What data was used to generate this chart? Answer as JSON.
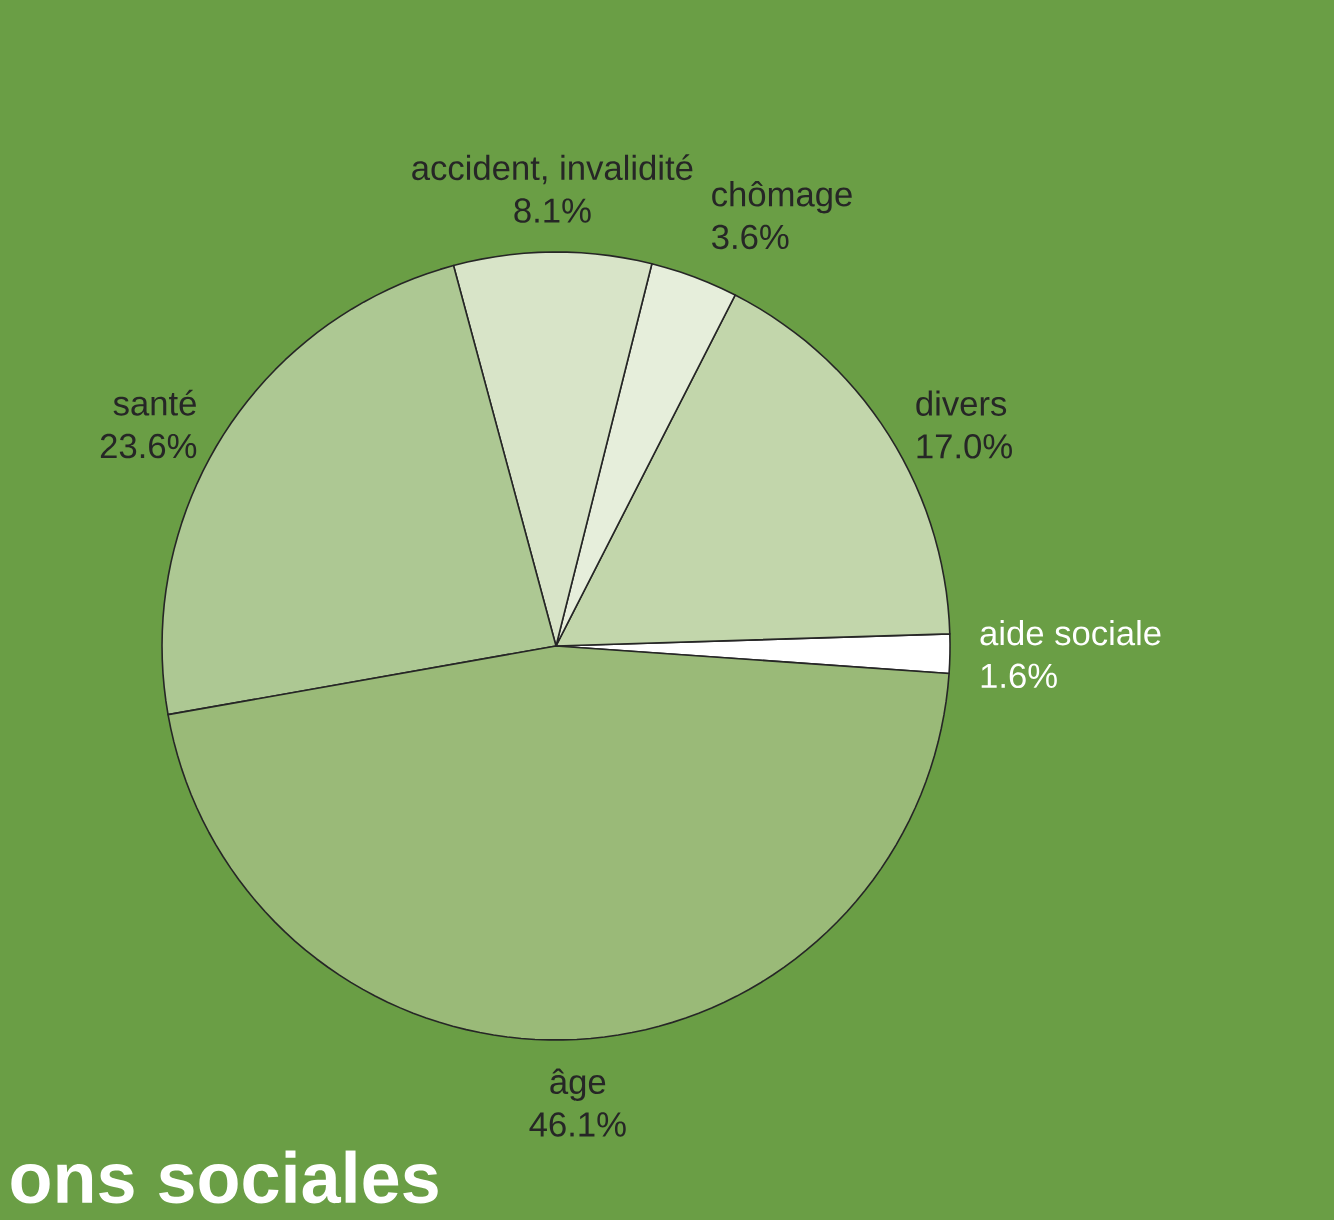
{
  "chart_data": {
    "type": "pie",
    "categories": [
      "aide sociale",
      "divers",
      "chômage",
      "accident, invalidité",
      "santé",
      "âge"
    ],
    "values": [
      1.6,
      17.0,
      3.6,
      8.1,
      23.6,
      46.1
    ],
    "value_labels": [
      "1.6%",
      "17.0%",
      "3.6%",
      "8.1%",
      "23.6%",
      "46.1%"
    ],
    "colors": [
      "#ffffff",
      "#c2d6ab",
      "#e6eedb",
      "#d8e4c8",
      "#adc893",
      "#9aba78"
    ],
    "annotations": [
      "ons sociales"
    ]
  }
}
